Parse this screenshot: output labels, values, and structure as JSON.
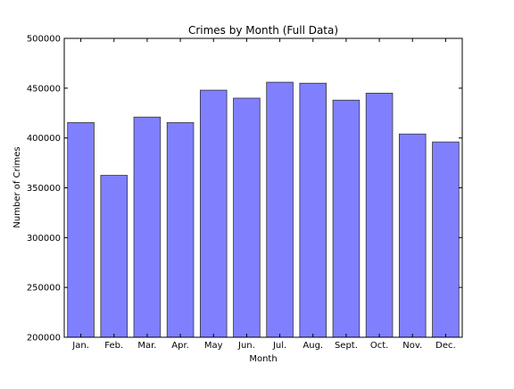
{
  "chart_data": {
    "type": "bar",
    "title": "Crimes by Month (Full Data)",
    "xlabel": "Month",
    "ylabel": "Number of Crimes",
    "categories": [
      "Jan.",
      "Feb.",
      "Mar.",
      "Apr.",
      "May",
      "Jun.",
      "Jul.",
      "Aug.",
      "Sept.",
      "Oct.",
      "Nov.",
      "Dec."
    ],
    "values": [
      415500,
      362500,
      421000,
      415500,
      448000,
      440000,
      456000,
      455000,
      438000,
      445000,
      404000,
      396000
    ],
    "ylim": [
      200000,
      500000
    ],
    "yticks": [
      200000,
      250000,
      300000,
      350000,
      400000,
      450000,
      500000
    ],
    "grid": false,
    "legend": "none",
    "bar_color": "#8080ff",
    "bar_edge_color": "#333333"
  }
}
